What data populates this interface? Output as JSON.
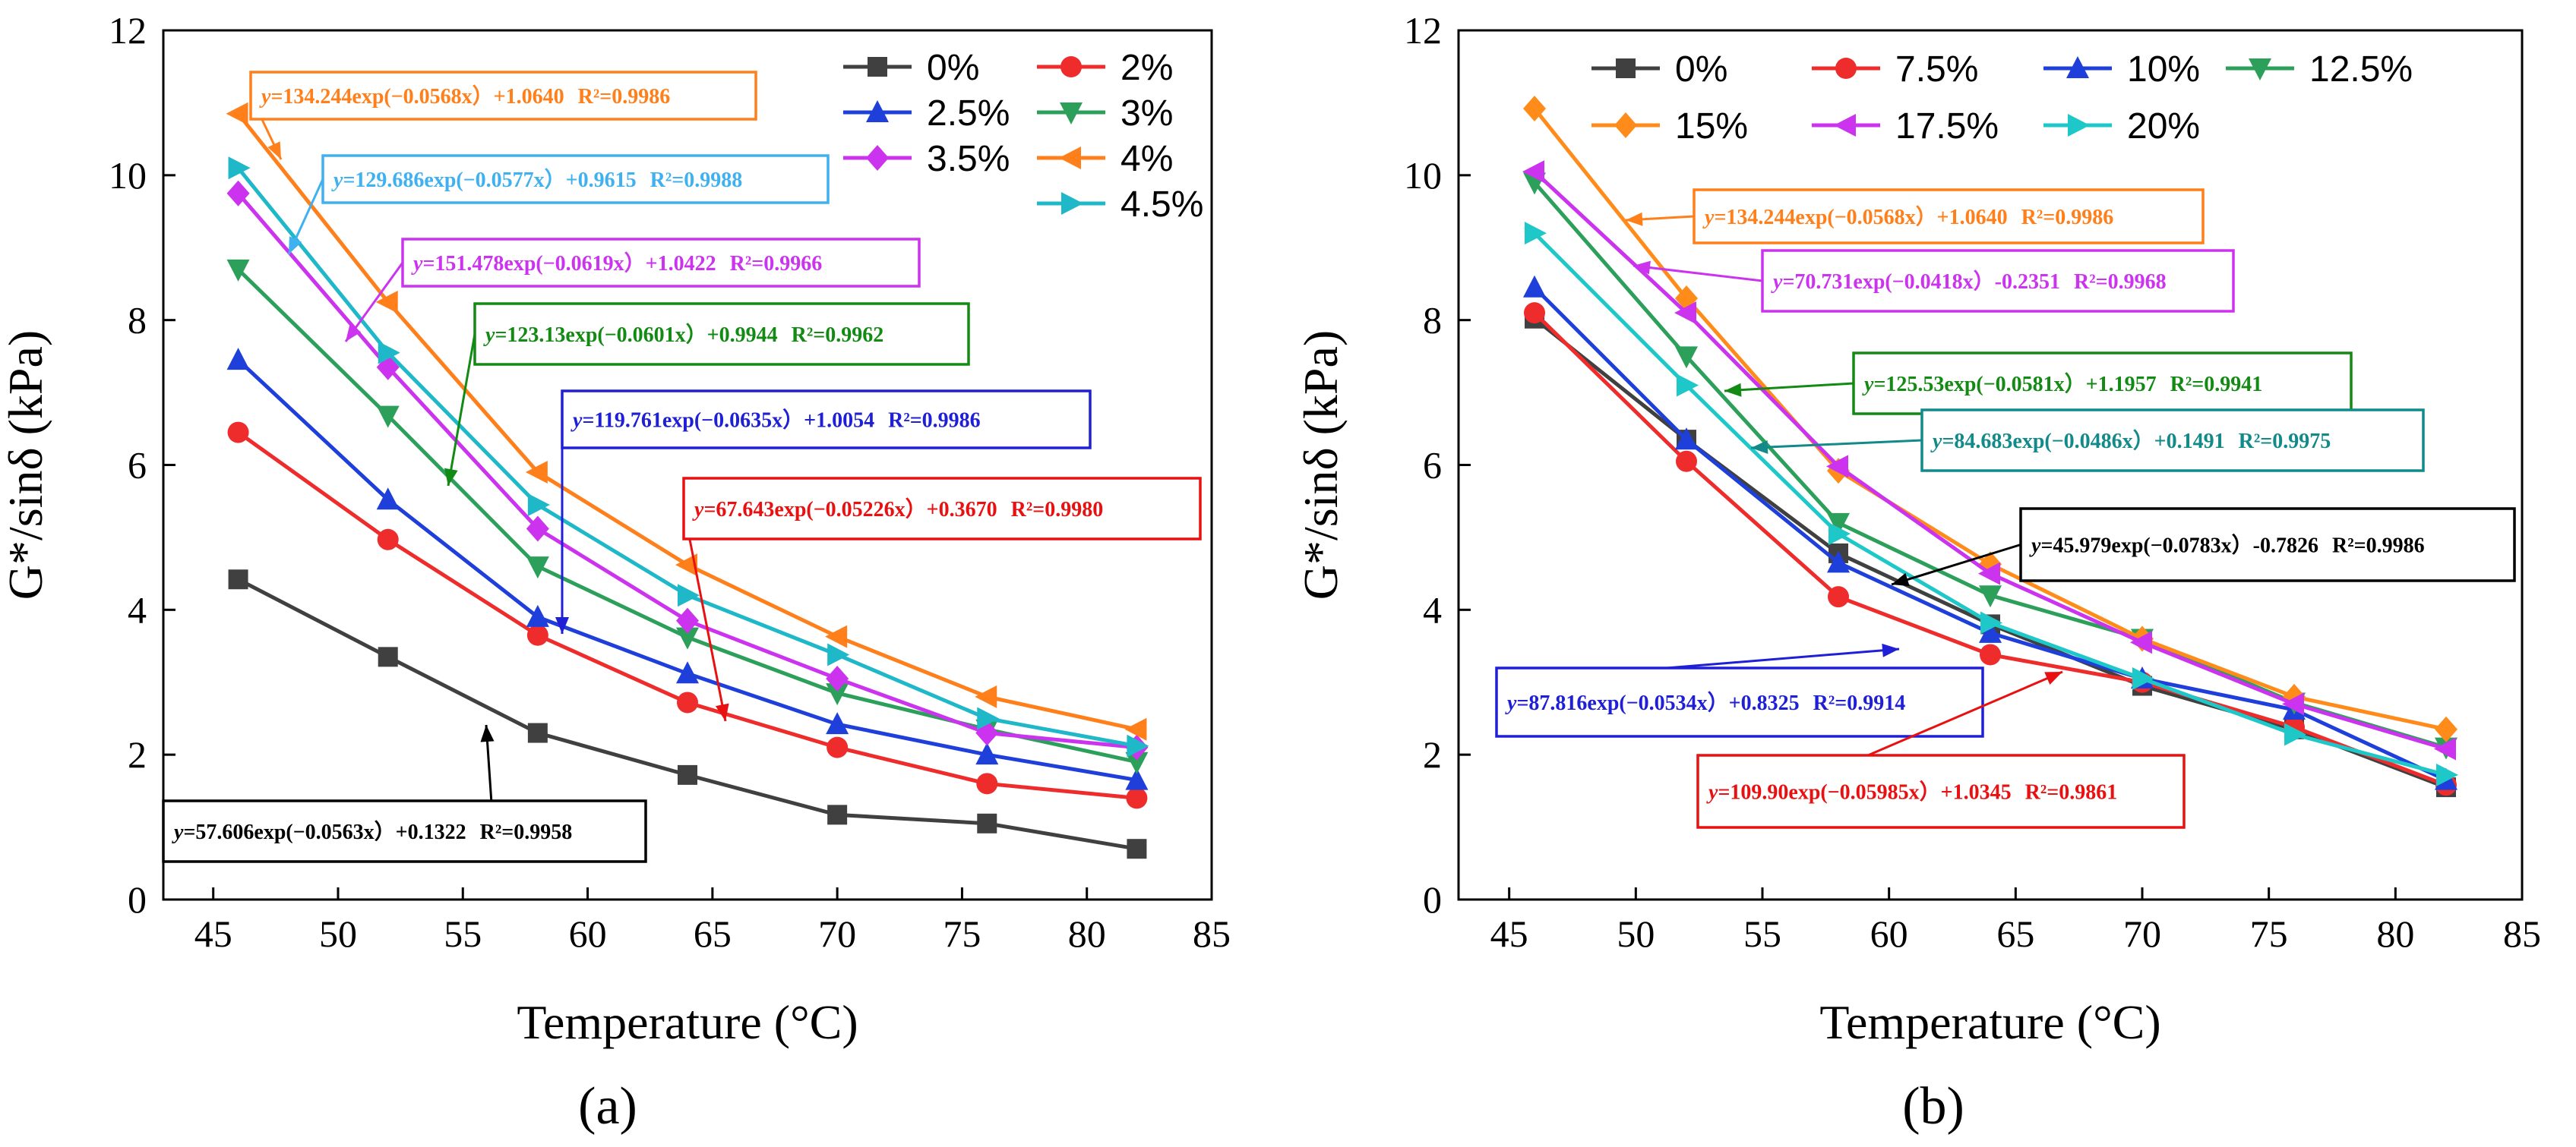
{
  "figure": {
    "panel_labels": [
      "(a)",
      "(b)"
    ]
  },
  "chart_data": [
    {
      "type": "line",
      "panel": "(a)",
      "xlabel": "Temperature (°C)",
      "ylabel": "G*/sinδ (kPa)",
      "xlim": [
        43,
        85
      ],
      "ylim": [
        0,
        12
      ],
      "x_ticks": [
        45,
        50,
        55,
        60,
        65,
        70,
        75,
        80,
        85
      ],
      "y_ticks": [
        0,
        2,
        4,
        6,
        8,
        10,
        12
      ],
      "x": [
        46,
        52,
        58,
        64,
        70,
        76,
        82
      ],
      "legend_location": "top-right",
      "series": [
        {
          "name": "0%",
          "color": "#404040",
          "marker": "square",
          "values": [
            4.42,
            3.35,
            2.3,
            1.72,
            1.17,
            1.05,
            0.7
          ]
        },
        {
          "name": "2%",
          "color": "#ee2c2c",
          "marker": "circle",
          "values": [
            6.45,
            4.97,
            3.65,
            2.72,
            2.1,
            1.6,
            1.4
          ]
        },
        {
          "name": "2.5%",
          "color": "#1f3fdb",
          "marker": "triangle-up",
          "values": [
            7.45,
            5.52,
            3.9,
            3.12,
            2.42,
            2.0,
            1.65
          ]
        },
        {
          "name": "3%",
          "color": "#2ca05a",
          "marker": "triangle-down",
          "values": [
            8.7,
            6.68,
            4.6,
            3.62,
            2.85,
            2.35,
            1.9
          ]
        },
        {
          "name": "3.5%",
          "color": "#cc33ee",
          "marker": "diamond",
          "values": [
            9.75,
            7.35,
            5.12,
            3.85,
            3.05,
            2.3,
            2.1
          ]
        },
        {
          "name": "4%",
          "color": "#ff7f1a",
          "marker": "triangle-left",
          "values": [
            10.85,
            8.25,
            5.9,
            4.62,
            3.63,
            2.8,
            2.35
          ]
        },
        {
          "name": "4.5%",
          "color": "#1fb8c8",
          "marker": "triangle-right",
          "values": [
            10.1,
            7.55,
            5.45,
            4.2,
            3.38,
            2.5,
            2.12
          ]
        }
      ],
      "annotations": [
        {
          "text_y": "y",
          "text_body": "=134.244exp(−0.0568x）+1.0640",
          "text_r2": "R²=0.9986",
          "color": "#ff7f1a"
        },
        {
          "text_y": "y",
          "text_body": "=129.686exp(−0.0577x）+0.9615",
          "text_r2": "R²=0.9988",
          "color": "#3fb0f0"
        },
        {
          "text_y": "y",
          "text_body": "=151.478exp(−0.0619x）+1.0422",
          "text_r2": "R²=0.9966",
          "color": "#cc33ee"
        },
        {
          "text_y": "y",
          "text_body": "=123.13exp(−0.0601x）+0.9944",
          "text_r2": "R²=0.9962",
          "color": "#138a13"
        },
        {
          "text_y": "y",
          "text_body": "=119.761exp(−0.0635x）+1.0054",
          "text_r2": "R²=0.9986",
          "color": "#1f1fd6"
        },
        {
          "text_y": "y",
          "text_body": "=67.643exp(−0.05226x）+0.3670",
          "text_r2": "R²=0.9980",
          "color": "#e81010"
        },
        {
          "text_y": "y",
          "text_body": "=57.606exp(−0.0563x）+0.1322",
          "text_r2": "R²=0.9958",
          "color": "#000000"
        }
      ]
    },
    {
      "type": "line",
      "panel": "(b)",
      "xlabel": "Temperature (°C)",
      "ylabel": "G*/sinδ (kPa)",
      "xlim": [
        43,
        85
      ],
      "ylim": [
        0,
        12
      ],
      "x_ticks": [
        45,
        50,
        55,
        60,
        65,
        70,
        75,
        80,
        85
      ],
      "y_ticks": [
        0,
        2,
        4,
        6,
        8,
        10,
        12
      ],
      "x": [
        46,
        52,
        58,
        64,
        70,
        76,
        82
      ],
      "legend_location": "top",
      "series": [
        {
          "name": "0%",
          "color": "#404040",
          "marker": "square",
          "values": [
            8.02,
            6.35,
            4.78,
            3.8,
            2.95,
            2.35,
            1.55
          ]
        },
        {
          "name": "7.5%",
          "color": "#ee2c2c",
          "marker": "circle",
          "values": [
            8.1,
            6.05,
            4.18,
            3.38,
            3.0,
            2.38,
            1.58
          ]
        },
        {
          "name": "10%",
          "color": "#1f3fdb",
          "marker": "triangle-up",
          "values": [
            8.45,
            6.35,
            4.65,
            3.68,
            3.05,
            2.62,
            1.65
          ]
        },
        {
          "name": "12.5%",
          "color": "#2ca05a",
          "marker": "triangle-down",
          "values": [
            9.9,
            7.5,
            5.2,
            4.2,
            3.6,
            2.72,
            2.1
          ]
        },
        {
          "name": "15%",
          "color": "#ff8c1a",
          "marker": "diamond",
          "values": [
            10.92,
            8.3,
            5.92,
            4.63,
            3.6,
            2.8,
            2.35
          ]
        },
        {
          "name": "17.5%",
          "color": "#cc33ee",
          "marker": "triangle-left",
          "values": [
            10.05,
            8.1,
            5.98,
            4.5,
            3.55,
            2.7,
            2.08
          ]
        },
        {
          "name": "20%",
          "color": "#1fc8c8",
          "marker": "triangle-right",
          "values": [
            9.2,
            7.1,
            5.05,
            3.82,
            3.05,
            2.28,
            1.72
          ]
        }
      ],
      "annotations": [
        {
          "text_y": "y",
          "text_body": "=134.244exp(−0.0568x）+1.0640",
          "text_r2": "R²=0.9986",
          "color": "#ff7f1a"
        },
        {
          "text_y": "y",
          "text_body": "=70.731exp(−0.0418x）-0.2351",
          "text_r2": "R²=0.9968",
          "color": "#cc33ee"
        },
        {
          "text_y": "y",
          "text_body": "=125.53exp(−0.0581x）+1.1957",
          "text_r2": "R²=0.9941",
          "color": "#138a13"
        },
        {
          "text_y": "y",
          "text_body": "=84.683exp(−0.0486x）+0.1491",
          "text_r2": "R²=0.9975",
          "color": "#138a8a"
        },
        {
          "text_y": "y",
          "text_body": "=45.979exp(−0.0783x）-0.7826",
          "text_r2": "R²=0.9986",
          "color": "#000000"
        },
        {
          "text_y": "y",
          "text_body": "=87.816exp(−0.0534x）+0.8325",
          "text_r2": "R²=0.9914",
          "color": "#1f1fd6"
        },
        {
          "text_y": "y",
          "text_body": "=109.90exp(−0.05985x）+1.0345",
          "text_r2": "R²=0.9861",
          "color": "#e81010"
        }
      ]
    }
  ]
}
